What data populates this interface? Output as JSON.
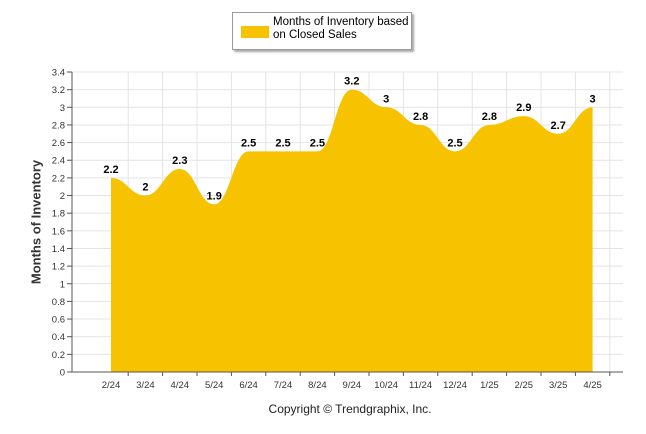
{
  "chart_data": {
    "type": "area",
    "categories": [
      "2/24",
      "3/24",
      "4/24",
      "5/24",
      "6/24",
      "7/24",
      "8/24",
      "9/24",
      "10/24",
      "11/24",
      "12/24",
      "1/25",
      "2/25",
      "3/25",
      "4/25"
    ],
    "series": [
      {
        "name": "Months of Inventory based on Closed Sales",
        "values": [
          2.2,
          2,
          2.3,
          1.9,
          2.5,
          2.5,
          2.5,
          3.2,
          3,
          2.8,
          2.5,
          2.8,
          2.9,
          2.7,
          3
        ],
        "color": "#F7C200"
      }
    ],
    "ylabel": "Months of Inventory",
    "xlabel": "",
    "ylim": [
      0,
      3.4
    ],
    "yticks": [
      "0",
      "0.2",
      "0.4",
      "0.6",
      "0.8",
      "1",
      "1.2",
      "1.4",
      "1.6",
      "1.8",
      "2",
      "2.2",
      "2.4",
      "2.6",
      "2.8",
      "3",
      "3.2",
      "3.4"
    ],
    "grid": true,
    "legend": "top-center",
    "data_labels": [
      "2.2",
      "2",
      "2.3",
      "1.9",
      "2.5",
      "2.5",
      "2.5",
      "3.2",
      "3",
      "2.8",
      "2.5",
      "2.8",
      "2.9",
      "2.7",
      "3"
    ]
  },
  "legend": {
    "label": "Months of Inventory based on Closed Sales"
  },
  "copyright": "Copyright © Trendgraphix, Inc."
}
